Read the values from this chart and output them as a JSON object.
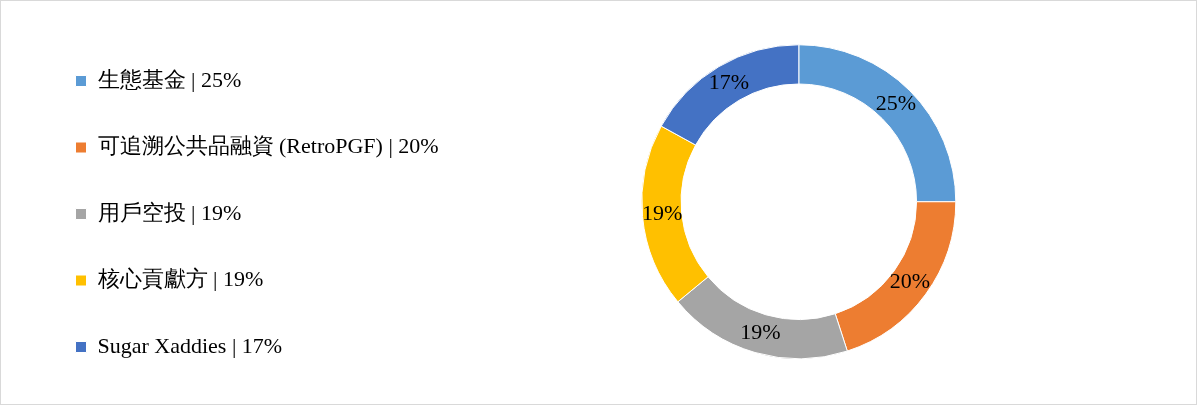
{
  "chart_data": {
    "type": "donut",
    "categories": [
      "生態基金 | 25%",
      "可追溯公共品融資 (RetroPGF) | 20%",
      "用戶空投 | 19%",
      "核心貢獻方 | 19%",
      "Sugar Xaddies | 17%"
    ],
    "values": [
      25,
      20,
      19,
      19,
      17
    ],
    "colors": [
      "#5b9bd5",
      "#ed7d31",
      "#a5a5a5",
      "#ffc000",
      "#4472c4"
    ],
    "value_labels": [
      "25%",
      "20%",
      "19%",
      "19%",
      "17%"
    ],
    "legend": "left"
  }
}
